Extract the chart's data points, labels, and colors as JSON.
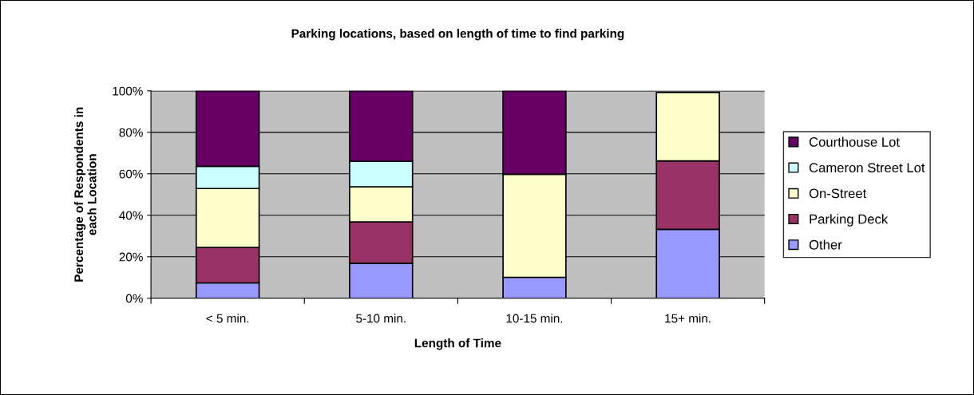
{
  "chart_data": {
    "type": "bar",
    "title": "Parking locations, based on length of time to find parking",
    "xlabel": "Length of Time",
    "ylabel": "Percentage of Respondents in\neach Location",
    "categories": [
      "< 5 min.",
      "5-10 min.",
      "10-15 min.",
      "15+ min."
    ],
    "stacked": true,
    "series": [
      {
        "name": "Other",
        "color": "#9999ff",
        "values": [
          7.4,
          16.9,
          10.1,
          33.2
        ]
      },
      {
        "name": "Parking Deck",
        "color": "#993366",
        "values": [
          17.1,
          19.9,
          null,
          33.0
        ]
      },
      {
        "name": "On-Street",
        "color": "#ffffcc",
        "values": [
          28.4,
          16.9,
          49.7,
          33.0
        ]
      },
      {
        "name": "Cameron Street Lot",
        "color": "#ccffff",
        "values": [
          10.7,
          12.3,
          null,
          null
        ]
      },
      {
        "name": "Courthouse Lot",
        "color": "#660066",
        "values": [
          36.4,
          34.0,
          40.2,
          null
        ]
      }
    ],
    "ylim": [
      0,
      100
    ],
    "yticks": [
      {
        "value": 0,
        "label": "0%"
      },
      {
        "value": 20,
        "label": "20%"
      },
      {
        "value": 40,
        "label": "40%"
      },
      {
        "value": 60,
        "label": "60%"
      },
      {
        "value": 80,
        "label": "80%"
      },
      {
        "value": 100,
        "label": "100%"
      }
    ],
    "grid": "y",
    "legend": "right"
  }
}
